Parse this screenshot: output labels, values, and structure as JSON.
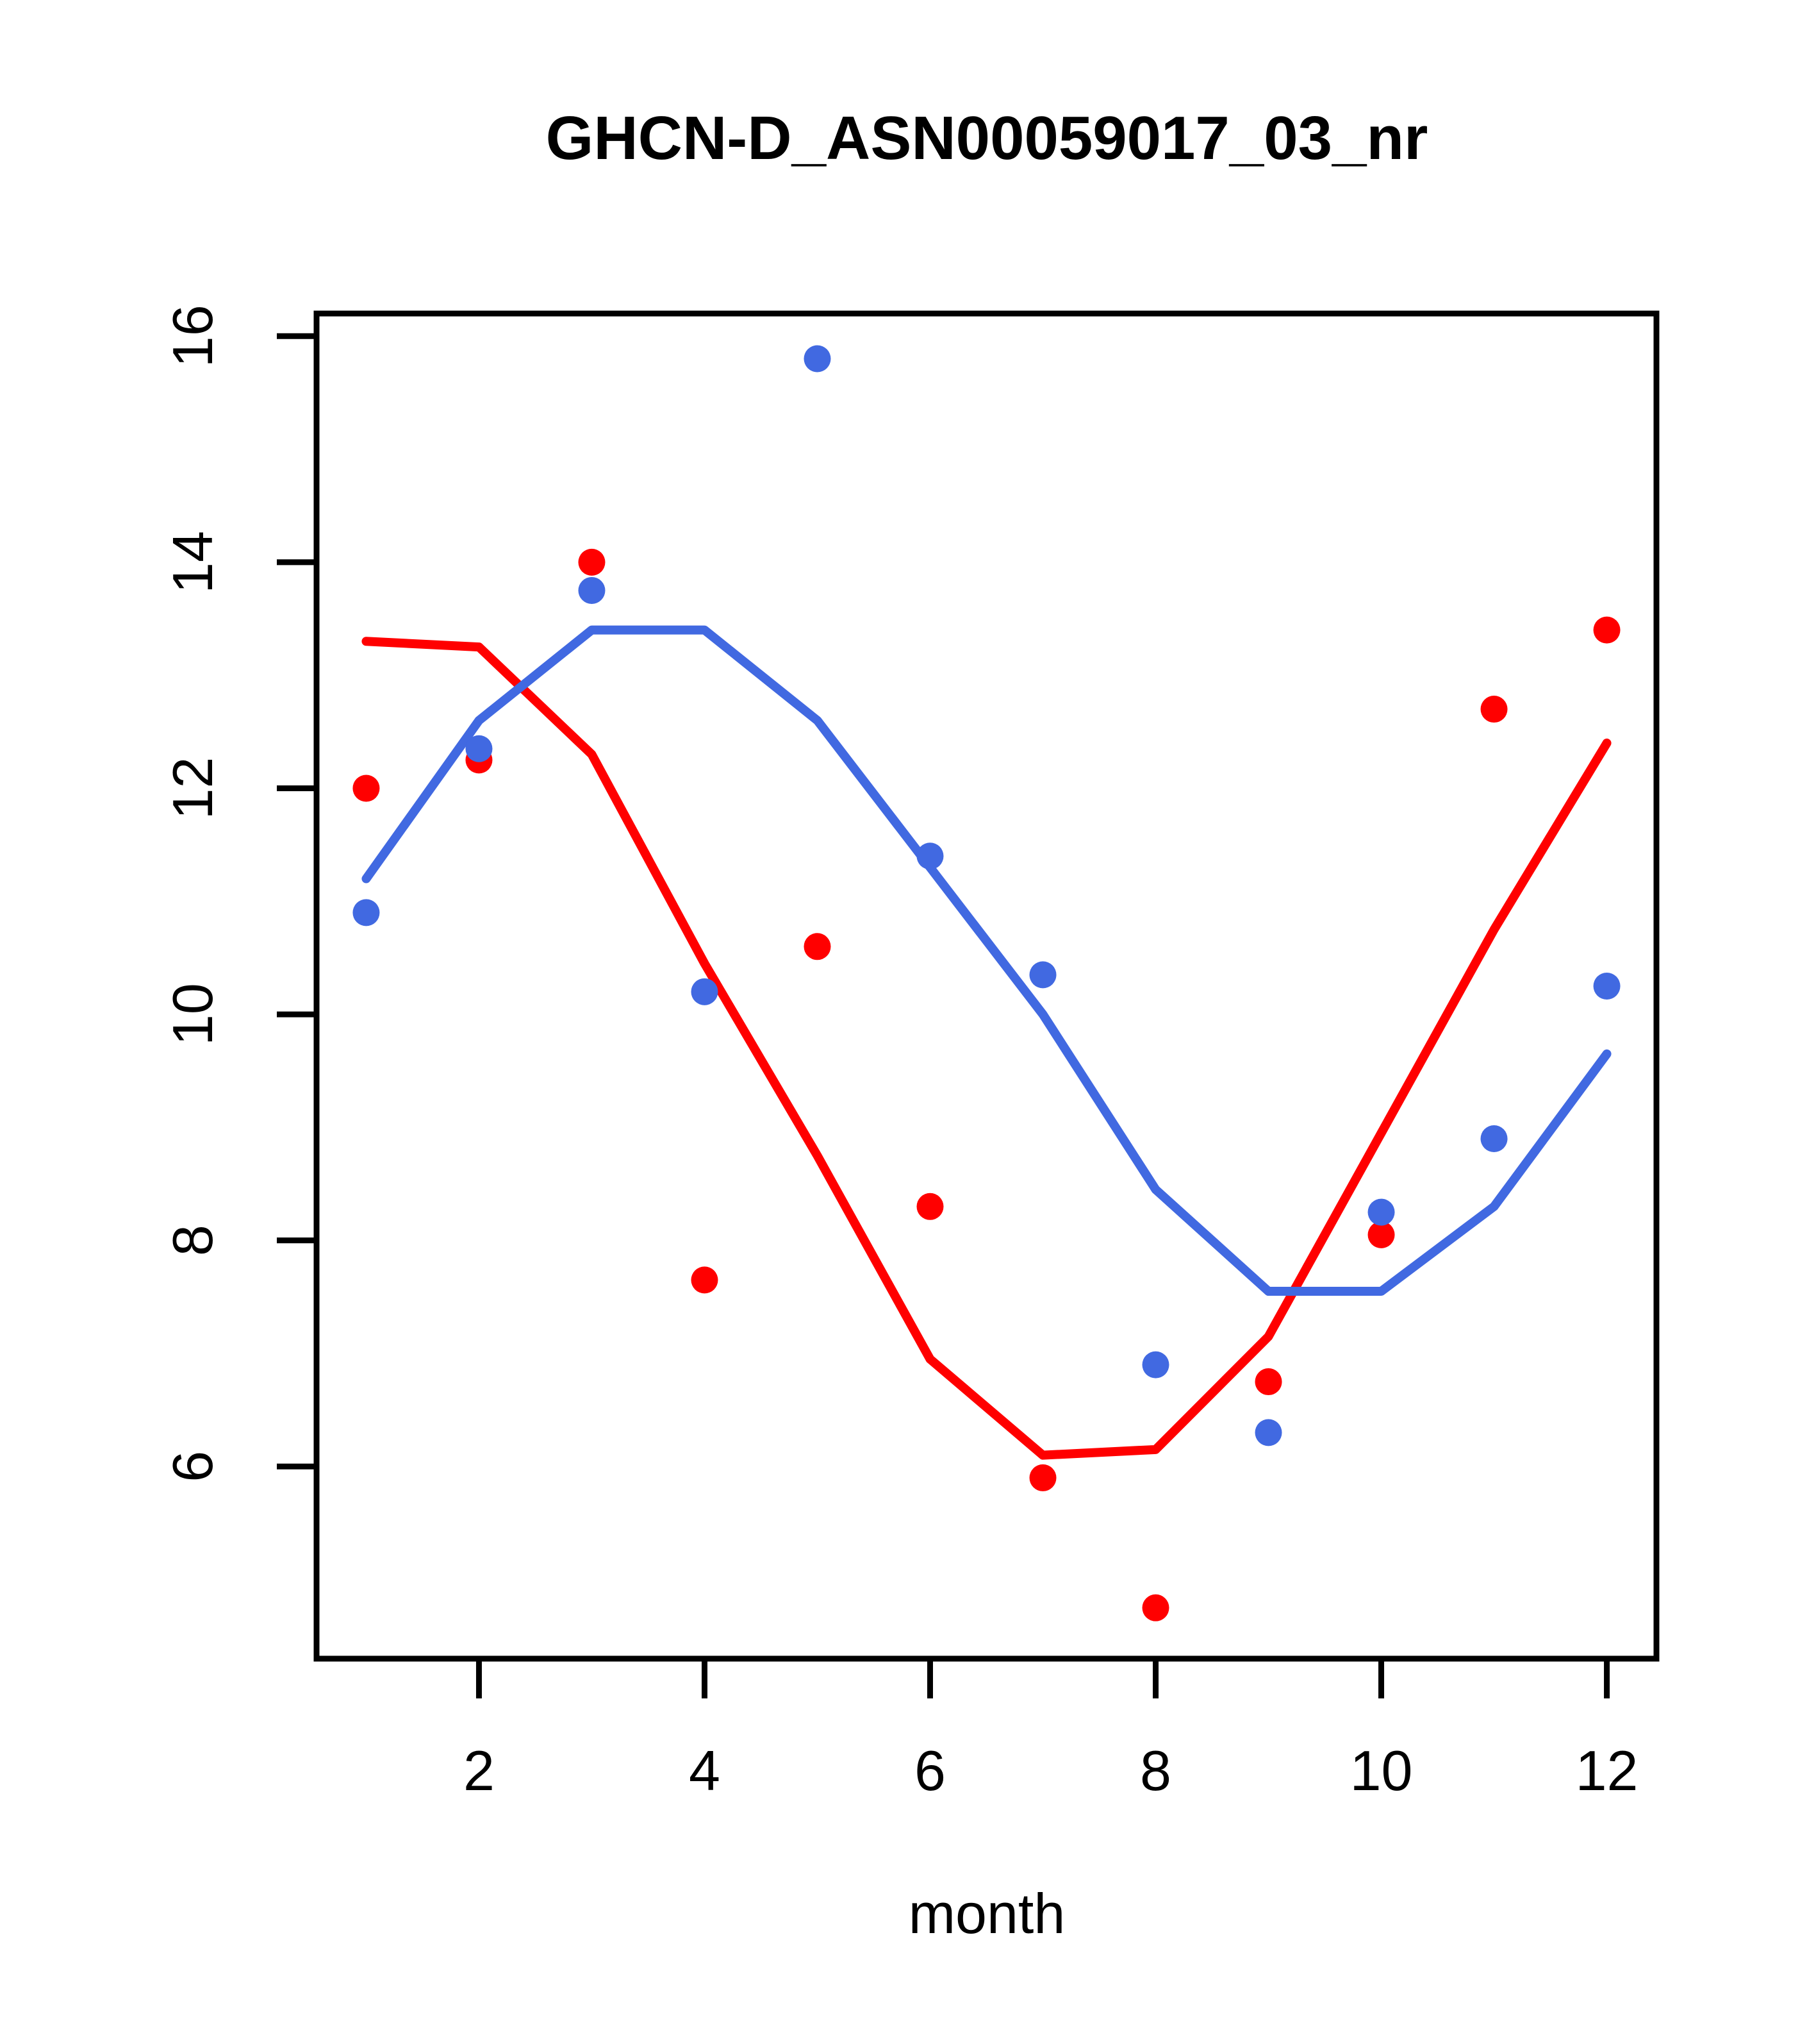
{
  "title": "GHCN-D_ASN00059017_03_nr",
  "x_axis": {
    "label": "month",
    "ticks": [
      2,
      4,
      6,
      8,
      10,
      12
    ]
  },
  "y_axis": {
    "label": "",
    "ticks": [
      6,
      8,
      10,
      12,
      14,
      16
    ]
  },
  "colors": {
    "red_series": "#FF0000",
    "blue_series": "#4169E1",
    "frame": "#000000",
    "background": "#FFFFFF"
  },
  "chart_data": {
    "type": "scatter",
    "title": "GHCN-D_ASN00059017_03_nr",
    "xlabel": "month",
    "ylabel": "",
    "x": [
      1,
      2,
      3,
      4,
      5,
      6,
      7,
      8,
      9,
      10,
      11,
      12
    ],
    "series": [
      {
        "name": "red-points",
        "style": "points",
        "color": "#FF0000",
        "values": [
          12.0,
          12.25,
          14.0,
          7.65,
          10.6,
          8.3,
          5.9,
          4.75,
          6.75,
          8.05,
          12.7,
          13.4
        ]
      },
      {
        "name": "blue-points",
        "style": "points",
        "color": "#4169E1",
        "values": [
          10.9,
          12.35,
          13.75,
          10.2,
          15.8,
          11.4,
          10.35,
          6.9,
          6.3,
          8.25,
          8.9,
          10.25
        ]
      },
      {
        "name": "red-lowess-line",
        "style": "line",
        "color": "#FF0000",
        "values": [
          13.3,
          13.25,
          12.3,
          10.45,
          8.75,
          6.95,
          6.1,
          6.15,
          7.15,
          8.95,
          10.75,
          12.4
        ]
      },
      {
        "name": "blue-lowess-line",
        "style": "line",
        "color": "#4169E1",
        "values": [
          11.2,
          12.6,
          13.4,
          13.4,
          12.6,
          11.3,
          10.0,
          8.45,
          7.55,
          7.55,
          8.3,
          9.65
        ]
      }
    ],
    "x_ticks": [
      2,
      4,
      6,
      8,
      10,
      12
    ],
    "y_ticks": [
      6,
      8,
      10,
      12,
      14,
      16
    ],
    "xlim": [
      0.56,
      12.44
    ],
    "ylim": [
      4.3,
      16.2
    ],
    "grid": false,
    "legend_position": "none"
  }
}
